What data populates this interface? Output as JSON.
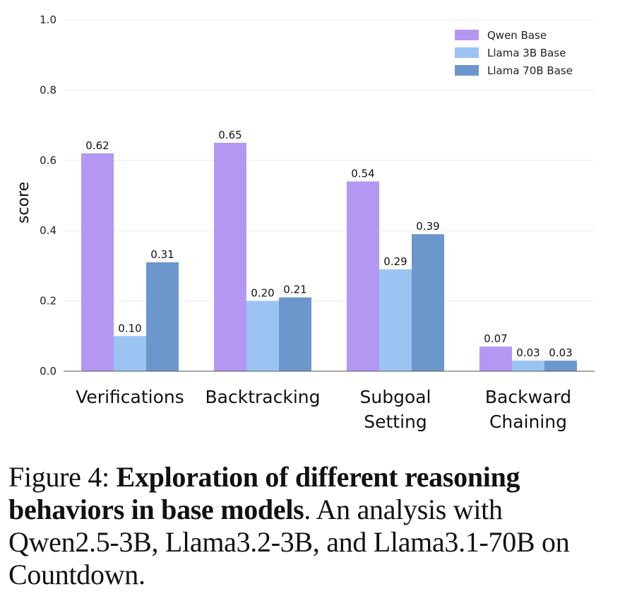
{
  "chart_data": {
    "type": "bar",
    "categories": [
      [
        "Verifications"
      ],
      [
        "Backtracking"
      ],
      [
        "Subgoal",
        "Setting"
      ],
      [
        "Backward",
        "Chaining"
      ]
    ],
    "series": [
      {
        "name": "Qwen Base",
        "color": "#b397f2",
        "values": [
          0.62,
          0.65,
          0.54,
          0.07
        ],
        "labels": [
          "0.62",
          "0.65",
          "0.54",
          "0.07"
        ]
      },
      {
        "name": "Llama 3B Base",
        "color": "#9cc4f2",
        "values": [
          0.1,
          0.2,
          0.29,
          0.03
        ],
        "labels": [
          "0.10",
          "0.20",
          "0.29",
          "0.03"
        ]
      },
      {
        "name": "Llama 70B Base",
        "color": "#6b97cc",
        "values": [
          0.31,
          0.21,
          0.39,
          0.03
        ],
        "labels": [
          "0.31",
          "0.21",
          "0.39",
          "0.03"
        ]
      }
    ],
    "ylabel": "score",
    "ylim": [
      0,
      1.0
    ],
    "yticks": [
      "0.0",
      "0.2",
      "0.4",
      "0.6",
      "0.8",
      "1.0"
    ],
    "legend_position": "top-right",
    "grid": true
  },
  "caption": {
    "prefix": "Figure 4: ",
    "bold": "Exploration of different reasoning behaviors in base models",
    "rest": ". An analysis with Qwen2.5-3B, Llama3.2-3B, and Llama3.1-70B on Countdown."
  }
}
